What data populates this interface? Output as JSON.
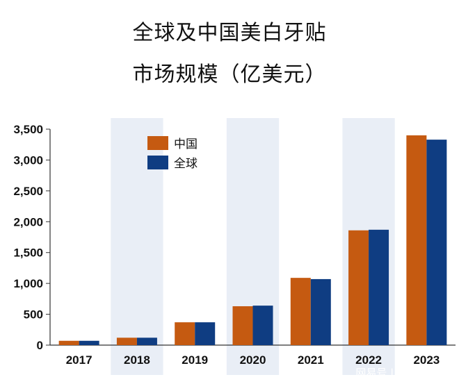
{
  "chart_data": {
    "type": "bar",
    "title_lines": [
      "全球及中国美白牙贴",
      "市场规模（亿美元）"
    ],
    "categories": [
      "2017",
      "2018",
      "2019",
      "2020",
      "2021",
      "2022",
      "2023"
    ],
    "series": [
      {
        "name": "中国",
        "color": "#c55a11",
        "values": [
          70,
          120,
          370,
          630,
          1090,
          1860,
          3400
        ]
      },
      {
        "name": "全球",
        "color": "#0f3d82",
        "values": [
          70,
          120,
          370,
          640,
          1070,
          1870,
          3330
        ]
      }
    ],
    "ylim": [
      0,
      3500
    ],
    "yticks": [
      "0",
      "500",
      "1,000",
      "1,500",
      "2,000",
      "2,500",
      "3,000",
      "3,500"
    ],
    "shaded_categories": [
      "2018",
      "2020",
      "2022"
    ],
    "shade_color": "#e9eef6",
    "legend_position": "top-left",
    "grid": false
  },
  "watermark": {
    "text": "网易号 | 贝哲斯咨询"
  }
}
